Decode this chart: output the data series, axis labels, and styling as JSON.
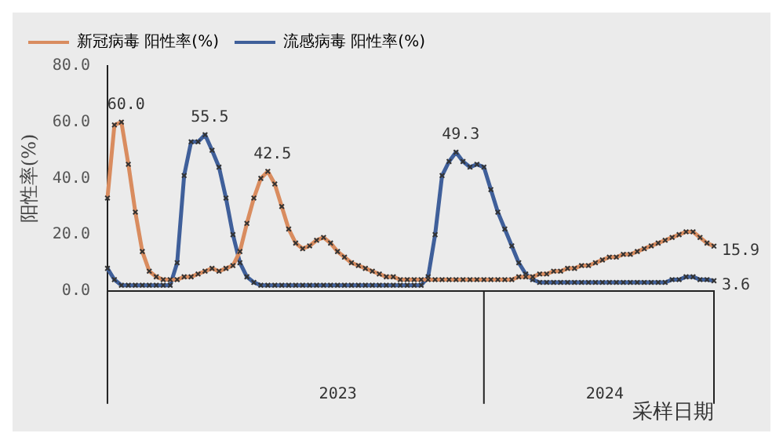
{
  "chart_data": {
    "type": "line",
    "xlabel": "采样日期",
    "ylabel": "阳性率(%)",
    "annotations": [
      "2023",
      "2024"
    ],
    "categories": [
      null,
      null,
      null,
      null,
      null,
      null,
      null,
      null,
      null,
      null,
      null,
      null,
      null,
      null,
      null,
      null,
      null,
      null,
      null,
      null,
      null,
      null,
      null,
      null,
      null,
      null,
      null,
      null,
      null,
      null,
      null,
      null,
      null,
      null,
      null,
      null,
      null,
      null,
      null,
      null,
      null,
      null,
      null,
      null,
      null,
      null,
      null,
      null,
      null,
      null,
      null,
      null,
      null,
      null,
      null,
      null,
      null,
      null,
      null,
      null,
      null,
      null,
      null,
      null,
      null,
      null,
      null,
      null,
      null,
      null,
      null,
      null,
      null,
      null,
      null,
      null,
      null,
      null,
      null,
      null,
      null,
      null,
      null,
      null,
      null,
      null,
      null,
      null
    ],
    "series": [
      {
        "name": "新冠病毒 阳性率(%)",
        "color": "#d98c5f",
        "values": [
          33,
          59,
          60,
          45,
          28,
          14,
          7,
          5,
          4,
          4,
          4,
          5,
          5,
          6,
          7,
          8,
          7,
          8,
          9,
          14,
          24,
          33,
          40,
          42.5,
          38,
          30,
          22,
          17,
          15,
          16,
          18,
          19,
          17,
          14,
          12,
          10,
          9,
          8,
          7,
          6,
          5,
          5,
          4,
          4,
          4,
          4,
          4,
          4,
          4,
          4,
          4,
          4,
          4,
          4,
          4,
          4,
          4,
          4,
          4,
          5,
          5,
          5,
          6,
          6,
          7,
          7,
          8,
          8,
          9,
          9,
          10,
          11,
          12,
          12,
          13,
          13,
          14,
          15,
          16,
          17,
          18,
          19,
          20,
          21,
          21,
          19,
          17,
          15.9
        ],
        "value_labels": [
          null,
          null,
          "60.0",
          null,
          null,
          null,
          null,
          null,
          null,
          null,
          null,
          null,
          null,
          null,
          null,
          null,
          null,
          null,
          null,
          null,
          null,
          null,
          null,
          "42.5",
          null,
          null,
          null,
          null,
          null,
          null,
          null,
          null,
          null,
          null,
          null,
          null,
          null,
          null,
          null,
          null,
          null,
          null,
          null,
          null,
          null,
          null,
          null,
          null,
          null,
          null,
          null,
          null,
          null,
          null,
          null,
          null,
          null,
          null,
          null,
          null,
          null,
          null,
          null,
          null,
          null,
          null,
          null,
          null,
          null,
          null,
          null,
          null,
          null,
          null,
          null,
          null,
          null,
          null,
          null,
          null,
          null,
          null,
          null,
          null,
          null,
          null,
          null,
          "15.9"
        ]
      },
      {
        "name": "流感病毒 阳性率(%)",
        "color": "#3f5f9a",
        "values": [
          8,
          4,
          2,
          2,
          2,
          2,
          2,
          2,
          2,
          2,
          10,
          41,
          53,
          53,
          55.5,
          50,
          44,
          33,
          20,
          10,
          5,
          3,
          2,
          2,
          2,
          2,
          2,
          2,
          2,
          2,
          2,
          2,
          2,
          2,
          2,
          2,
          2,
          2,
          2,
          2,
          2,
          2,
          2,
          2,
          2,
          2,
          5,
          20,
          41,
          46,
          49.3,
          46,
          44,
          45,
          44,
          36,
          28,
          22,
          16,
          10,
          6,
          4,
          3,
          3,
          3,
          3,
          3,
          3,
          3,
          3,
          3,
          3,
          3,
          3,
          3,
          3,
          3,
          3,
          3,
          3,
          3,
          4,
          4,
          5,
          5,
          4,
          4,
          3.6
        ],
        "value_labels": [
          null,
          null,
          null,
          null,
          null,
          null,
          null,
          null,
          null,
          null,
          null,
          null,
          null,
          null,
          "55.5",
          null,
          null,
          null,
          null,
          null,
          null,
          null,
          null,
          null,
          null,
          null,
          null,
          null,
          null,
          null,
          null,
          null,
          null,
          null,
          null,
          null,
          null,
          null,
          null,
          null,
          null,
          null,
          null,
          null,
          null,
          null,
          null,
          null,
          null,
          null,
          "49.3",
          null,
          null,
          null,
          null,
          null,
          null,
          null,
          null,
          null,
          null,
          null,
          null,
          null,
          null,
          null,
          null,
          null,
          null,
          null,
          null,
          null,
          null,
          null,
          null,
          null,
          null,
          null,
          null,
          null,
          null,
          null,
          null,
          null,
          null,
          null,
          null,
          "3.6"
        ]
      }
    ],
    "ylim": [
      0,
      80
    ],
    "yticks": [
      {
        "value": 0,
        "label": "0.0"
      },
      {
        "value": 20,
        "label": "20.0"
      },
      {
        "value": 40,
        "label": "40.0"
      },
      {
        "value": 60,
        "label": "60.0"
      },
      {
        "value": 80,
        "label": "80.0"
      }
    ],
    "grid": false,
    "legend": "top",
    "marker": "cross",
    "line_style": "solid"
  }
}
